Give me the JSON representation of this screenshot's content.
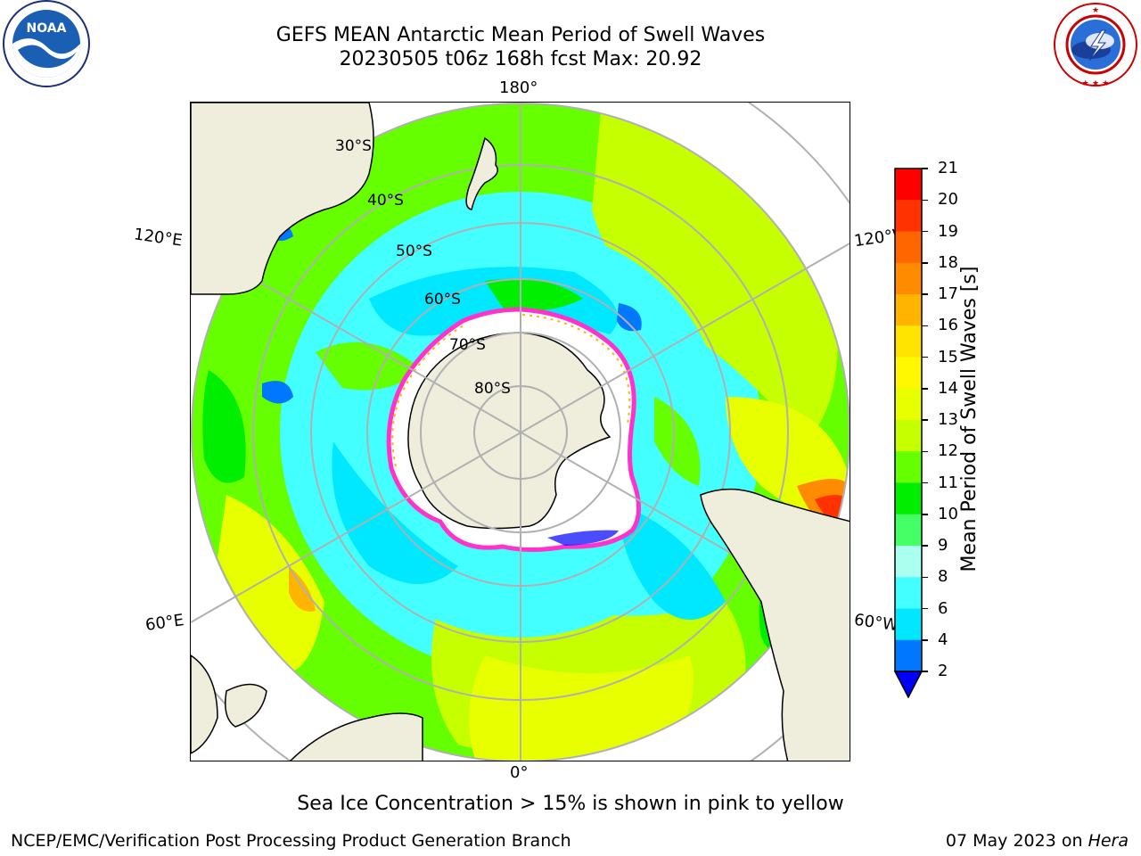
{
  "header": {
    "title_line1": "GEFS MEAN Antarctic Mean Period of Swell Waves",
    "title_line2": "20230505 t06z 168h fcst   Max: 20.92"
  },
  "logos": {
    "left": {
      "name": "NOAA",
      "text": "NOAA",
      "ring_text": "NATIONAL OCEANIC AND ATMOSPHERIC ADMINISTRATION · U.S. DEPARTMENT OF COMMERCE"
    },
    "right": {
      "name": "National Weather Service",
      "ring_text": "NATIONAL WEATHER SERVICE"
    }
  },
  "map": {
    "projection": "south-polar-stereographic",
    "lon_labels": {
      "top": "180°",
      "bottom": "0°",
      "upper_left": "120°E",
      "upper_right": "120°W",
      "lower_left": "60°E",
      "lower_right": "60°W"
    },
    "lat_labels": [
      "30°S",
      "40°S",
      "50°S",
      "60°S",
      "70°S",
      "80°S"
    ],
    "colors": {
      "land": "#efeddc",
      "ice_edge": "#ff33cc",
      "grid": "#b0b0b0"
    }
  },
  "colorbar": {
    "label": "Mean Period of Swell Waves [s]",
    "ticks": [
      "21",
      "20",
      "19",
      "18",
      "17",
      "16",
      "15",
      "14",
      "13",
      "12",
      "11",
      "10",
      "9",
      "8",
      "6",
      "4",
      "2"
    ],
    "bins": [
      {
        "from": 20,
        "to": 21,
        "color": "#ff0000"
      },
      {
        "from": 19,
        "to": 20,
        "color": "#ff3200"
      },
      {
        "from": 18,
        "to": 19,
        "color": "#ff6600"
      },
      {
        "from": 17,
        "to": 18,
        "color": "#ff8c00"
      },
      {
        "from": 16,
        "to": 17,
        "color": "#ffb400"
      },
      {
        "from": 15,
        "to": 16,
        "color": "#ffe400"
      },
      {
        "from": 14,
        "to": 15,
        "color": "#fff800"
      },
      {
        "from": 13,
        "to": 14,
        "color": "#e8ff00"
      },
      {
        "from": 12,
        "to": 13,
        "color": "#c6ff00"
      },
      {
        "from": 11,
        "to": 12,
        "color": "#66ff00"
      },
      {
        "from": 10,
        "to": 11,
        "color": "#00ee00"
      },
      {
        "from": 9,
        "to": 10,
        "color": "#44ff66"
      },
      {
        "from": 8,
        "to": 9,
        "color": "#aaffee"
      },
      {
        "from": 6,
        "to": 8,
        "color": "#44ffff"
      },
      {
        "from": 4,
        "to": 6,
        "color": "#00e8ff"
      },
      {
        "from": 2,
        "to": 4,
        "color": "#0077ff"
      }
    ],
    "extend_color": "#0000ff"
  },
  "footer": {
    "note": "Sea Ice Concentration > 15% is shown in pink to yellow",
    "credit": "NCEP/EMC/Verification Post Processing Product Generation Branch",
    "date": "07 May 2023 on ",
    "host": "Hera"
  }
}
